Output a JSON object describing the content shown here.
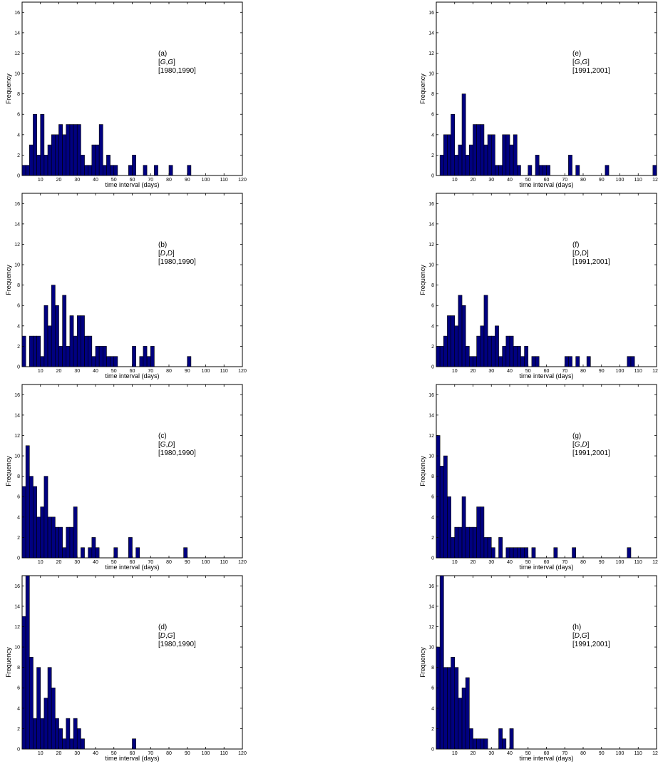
{
  "chart_data": [
    {
      "type": "bar",
      "panel": "(a)",
      "pair": "[G,G]",
      "pair_parts": [
        "G",
        "G"
      ],
      "period": "[1980,1990]",
      "xlabel": "time interval (days)",
      "ylabel": "Frequency",
      "xlim": [
        0,
        120
      ],
      "ylim": [
        0,
        17
      ],
      "xticks": [
        10,
        20,
        30,
        40,
        50,
        60,
        70,
        80,
        90,
        100,
        110,
        120
      ],
      "yticks": [
        0,
        2,
        4,
        6,
        8,
        10,
        12,
        14,
        16
      ],
      "x": [
        2,
        4,
        6,
        8,
        10,
        12,
        14,
        16,
        18,
        20,
        22,
        24,
        26,
        28,
        30,
        32,
        34,
        36,
        38,
        40,
        42,
        44,
        46,
        48,
        50,
        52,
        60,
        62,
        68,
        74,
        82,
        92
      ],
      "values": [
        1,
        1,
        3,
        6,
        2,
        6,
        2,
        3,
        4,
        4,
        5,
        4,
        5,
        5,
        5,
        5,
        2,
        1,
        1,
        3,
        3,
        5,
        1,
        2,
        1,
        1,
        1,
        2,
        1,
        1,
        1,
        1
      ]
    },
    {
      "type": "bar",
      "panel": "(b)",
      "pair": "[D,D]",
      "pair_parts": [
        "D",
        "D"
      ],
      "period": "[1980,1990]",
      "xlabel": "time interval (days)",
      "ylabel": "Frequency",
      "xlim": [
        0,
        120
      ],
      "ylim": [
        0,
        17
      ],
      "xticks": [
        10,
        20,
        30,
        40,
        50,
        60,
        70,
        80,
        90,
        100,
        110,
        120
      ],
      "yticks": [
        0,
        2,
        4,
        6,
        8,
        10,
        12,
        14,
        16
      ],
      "x": [
        2,
        6,
        8,
        10,
        12,
        14,
        16,
        18,
        20,
        22,
        24,
        26,
        28,
        30,
        32,
        34,
        36,
        38,
        40,
        42,
        44,
        46,
        48,
        50,
        52,
        62,
        66,
        68,
        70,
        72,
        92
      ],
      "values": [
        3,
        3,
        3,
        3,
        1,
        6,
        4,
        8,
        6,
        2,
        7,
        2,
        5,
        3,
        5,
        5,
        3,
        3,
        1,
        2,
        2,
        2,
        1,
        1,
        1,
        2,
        1,
        2,
        1,
        2,
        1
      ]
    },
    {
      "type": "bar",
      "panel": "(c)",
      "pair": "[G,D]",
      "pair_parts": [
        "G",
        "D"
      ],
      "period": "[1980,1990]",
      "xlabel": "time interval (days)",
      "ylabel": "Frequency",
      "xlim": [
        0,
        120
      ],
      "ylim": [
        0,
        17
      ],
      "xticks": [
        10,
        20,
        30,
        40,
        50,
        60,
        70,
        80,
        90,
        100,
        110,
        120
      ],
      "yticks": [
        0,
        2,
        4,
        6,
        8,
        10,
        12,
        14,
        16
      ],
      "x": [
        2,
        4,
        6,
        8,
        10,
        12,
        14,
        16,
        18,
        20,
        22,
        24,
        26,
        28,
        30,
        34,
        38,
        40,
        42,
        52,
        60,
        64,
        90
      ],
      "values": [
        7,
        11,
        8,
        7,
        4,
        5,
        8,
        4,
        4,
        3,
        3,
        1,
        3,
        3,
        5,
        1,
        1,
        2,
        1,
        1,
        2,
        1,
        1
      ]
    },
    {
      "type": "bar",
      "panel": "(d)",
      "pair": "[D,G]",
      "pair_parts": [
        "D",
        "G"
      ],
      "period": "[1980,1990]",
      "xlabel": "time interval (days)",
      "ylabel": "Frequency",
      "xlim": [
        0,
        120
      ],
      "ylim": [
        0,
        17
      ],
      "xticks": [
        10,
        20,
        30,
        40,
        50,
        60,
        70,
        80,
        90,
        100,
        110,
        120
      ],
      "yticks": [
        0,
        2,
        4,
        6,
        8,
        10,
        12,
        14,
        16
      ],
      "x": [
        2,
        4,
        6,
        8,
        10,
        12,
        14,
        16,
        18,
        20,
        22,
        24,
        26,
        28,
        30,
        32,
        34,
        62
      ],
      "values": [
        13,
        17,
        9,
        3,
        8,
        3,
        5,
        8,
        6,
        3,
        2,
        1,
        3,
        1,
        3,
        2,
        1,
        1
      ]
    },
    {
      "type": "bar",
      "panel": "(e)",
      "pair": "[G,G]",
      "pair_parts": [
        "G",
        "G"
      ],
      "period": "[1991,2001]",
      "xlabel": "time interval (days)",
      "ylabel": "Frequency",
      "xlim": [
        0,
        120
      ],
      "ylim": [
        0,
        17
      ],
      "xticks": [
        10,
        20,
        30,
        40,
        50,
        60,
        70,
        80,
        90,
        100,
        110,
        120
      ],
      "yticks": [
        0,
        2,
        4,
        6,
        8,
        10,
        12,
        14,
        16
      ],
      "x": [
        4,
        6,
        8,
        10,
        12,
        14,
        16,
        18,
        20,
        22,
        24,
        26,
        28,
        30,
        32,
        34,
        36,
        38,
        40,
        42,
        44,
        46,
        52,
        56,
        58,
        60,
        62,
        74,
        78,
        94,
        120
      ],
      "values": [
        2,
        4,
        4,
        6,
        2,
        3,
        8,
        2,
        3,
        5,
        5,
        5,
        3,
        4,
        4,
        1,
        1,
        4,
        4,
        3,
        4,
        1,
        1,
        2,
        1,
        1,
        1,
        2,
        1,
        1,
        1
      ]
    },
    {
      "type": "bar",
      "panel": "(f)",
      "pair": "[D,D]",
      "pair_parts": [
        "D",
        "D"
      ],
      "period": "[1991,2001]",
      "xlabel": "time interval (days)",
      "ylabel": "Frequency",
      "xlim": [
        0,
        120
      ],
      "ylim": [
        0,
        17
      ],
      "xticks": [
        10,
        20,
        30,
        40,
        50,
        60,
        70,
        80,
        90,
        100,
        110,
        120
      ],
      "yticks": [
        0,
        2,
        4,
        6,
        8,
        10,
        12,
        14,
        16
      ],
      "x": [
        2,
        4,
        6,
        8,
        10,
        12,
        14,
        16,
        18,
        20,
        22,
        24,
        26,
        28,
        30,
        32,
        34,
        36,
        38,
        40,
        42,
        44,
        46,
        48,
        50,
        54,
        56,
        72,
        74,
        78,
        84,
        106,
        108
      ],
      "values": [
        2,
        2,
        3,
        5,
        5,
        4,
        7,
        6,
        2,
        1,
        1,
        3,
        4,
        7,
        3,
        3,
        4,
        1,
        2,
        3,
        3,
        2,
        2,
        1,
        2,
        1,
        1,
        1,
        1,
        1,
        1,
        1,
        1
      ]
    },
    {
      "type": "bar",
      "panel": "(g)",
      "pair": "[G,D]",
      "pair_parts": [
        "G",
        "D"
      ],
      "period": "[1991,2001]",
      "xlabel": "time interval (days)",
      "ylabel": "Frequency",
      "xlim": [
        0,
        120
      ],
      "ylim": [
        0,
        17
      ],
      "xticks": [
        10,
        20,
        30,
        40,
        50,
        60,
        70,
        80,
        90,
        100,
        110,
        120
      ],
      "yticks": [
        0,
        2,
        4,
        6,
        8,
        10,
        12,
        14,
        16
      ],
      "x": [
        2,
        4,
        6,
        8,
        10,
        12,
        14,
        16,
        18,
        20,
        22,
        24,
        26,
        28,
        30,
        32,
        36,
        40,
        42,
        44,
        46,
        48,
        50,
        54,
        66,
        76,
        106
      ],
      "values": [
        12,
        9,
        10,
        6,
        2,
        3,
        3,
        6,
        3,
        3,
        3,
        5,
        5,
        2,
        2,
        1,
        2,
        1,
        1,
        1,
        1,
        1,
        1,
        1,
        1,
        1,
        1
      ]
    },
    {
      "type": "bar",
      "panel": "(h)",
      "pair": "[D,G]",
      "pair_parts": [
        "D",
        "G"
      ],
      "period": "[1991,2001]",
      "xlabel": "time interval (days)",
      "ylabel": "Frequency",
      "xlim": [
        0,
        120
      ],
      "ylim": [
        0,
        17
      ],
      "xticks": [
        10,
        20,
        30,
        40,
        50,
        60,
        70,
        80,
        90,
        100,
        110,
        120
      ],
      "yticks": [
        0,
        2,
        4,
        6,
        8,
        10,
        12,
        14,
        16
      ],
      "x": [
        2,
        4,
        6,
        8,
        10,
        12,
        14,
        16,
        18,
        20,
        22,
        24,
        26,
        28,
        36,
        38,
        42
      ],
      "values": [
        10,
        17,
        8,
        8,
        9,
        8,
        5,
        6,
        7,
        2,
        1,
        1,
        1,
        1,
        2,
        1,
        2
      ]
    }
  ],
  "colors": {
    "bar_fill": "#000080",
    "bar_edge": "#000000",
    "axes": "#000000",
    "background": "#ffffff"
  }
}
